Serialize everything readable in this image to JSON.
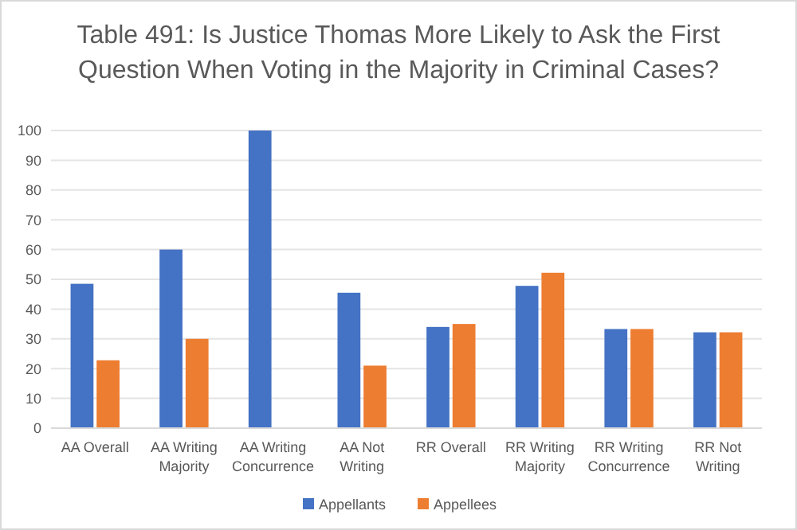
{
  "chart_data": {
    "type": "bar",
    "title": "Table 491: Is Justice Thomas More Likely to Ask the First Question When Voting in the Majority in Criminal Cases?",
    "categories": [
      "AA Overall",
      "AA Writing Majority",
      "AA Writing Concurrence",
      "AA Not Writing",
      "RR Overall",
      "RR Writing Majority",
      "RR Writing Concurrence",
      "RR Not Writing"
    ],
    "series": [
      {
        "name": "Appellants",
        "color": "#4472c4",
        "values": [
          48.5,
          60,
          100,
          45.5,
          34,
          47.8,
          33.3,
          32.2
        ]
      },
      {
        "name": "Appellees",
        "color": "#ed7d31",
        "values": [
          22.8,
          30,
          0,
          21,
          35,
          52.2,
          33.3,
          32.2
        ]
      }
    ],
    "ylim": [
      0,
      100
    ],
    "yticks": [
      0,
      10,
      20,
      30,
      40,
      50,
      60,
      70,
      80,
      90,
      100
    ],
    "grid": "y",
    "legend": "bottom"
  }
}
